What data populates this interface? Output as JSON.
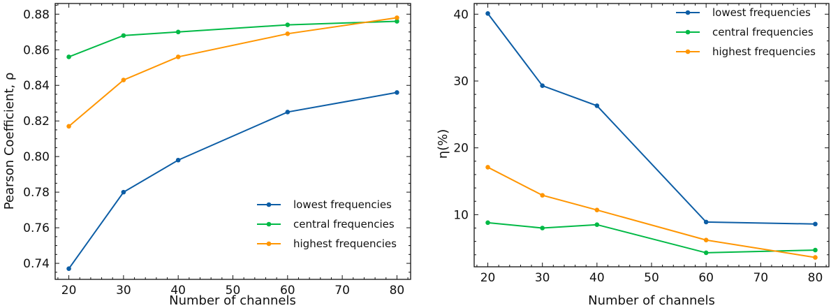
{
  "colors": {
    "lowest": "#0c5da5",
    "central": "#00b945",
    "highest": "#ff9500"
  },
  "chart_data": [
    {
      "type": "line",
      "xlabel": "Number of channels",
      "ylabel": "Pearson Coefficient, ρ",
      "xlim": [
        17.5,
        82.5
      ],
      "ylim": [
        0.731,
        0.886
      ],
      "x": [
        20,
        30,
        40,
        60,
        80
      ],
      "xticks": [
        20,
        30,
        40,
        50,
        60,
        70,
        80
      ],
      "xtick_labels": [
        "20",
        "30",
        "40",
        "50",
        "60",
        "70",
        "80"
      ],
      "yticks": [
        0.74,
        0.76,
        0.78,
        0.8,
        0.82,
        0.84,
        0.86,
        0.88
      ],
      "ytick_labels": [
        "0.74",
        "0.76",
        "0.78",
        "0.80",
        "0.82",
        "0.84",
        "0.86",
        "0.88"
      ],
      "legend_position": "lower-right",
      "series": [
        {
          "name": "lowest frequencies",
          "key": "lowest",
          "values": [
            0.737,
            0.78,
            0.798,
            0.825,
            0.836
          ]
        },
        {
          "name": "central frequencies",
          "key": "central",
          "values": [
            0.856,
            0.868,
            0.87,
            0.874,
            0.876
          ]
        },
        {
          "name": "highest frequencies",
          "key": "highest",
          "values": [
            0.817,
            0.843,
            0.856,
            0.869,
            0.878
          ]
        }
      ]
    },
    {
      "type": "line",
      "xlabel": "Number of channels",
      "ylabel": "η(%)",
      "xlim": [
        17.5,
        82.5
      ],
      "ylim": [
        2.2,
        41.6
      ],
      "x": [
        20,
        30,
        40,
        60,
        80
      ],
      "xticks": [
        20,
        30,
        40,
        50,
        60,
        70,
        80
      ],
      "xtick_labels": [
        "20",
        "30",
        "40",
        "50",
        "60",
        "70",
        "80"
      ],
      "yticks": [
        10,
        20,
        30,
        40
      ],
      "ytick_labels": [
        "10",
        "20",
        "30",
        "40"
      ],
      "legend_position": "upper-right",
      "series": [
        {
          "name": "lowest frequencies",
          "key": "lowest",
          "values": [
            40.1,
            29.3,
            26.3,
            8.9,
            8.6
          ]
        },
        {
          "name": "central frequencies",
          "key": "central",
          "values": [
            8.8,
            8.0,
            8.5,
            4.3,
            4.7
          ]
        },
        {
          "name": "highest frequencies",
          "key": "highest",
          "values": [
            17.1,
            12.9,
            10.7,
            6.2,
            3.6
          ]
        }
      ]
    }
  ]
}
